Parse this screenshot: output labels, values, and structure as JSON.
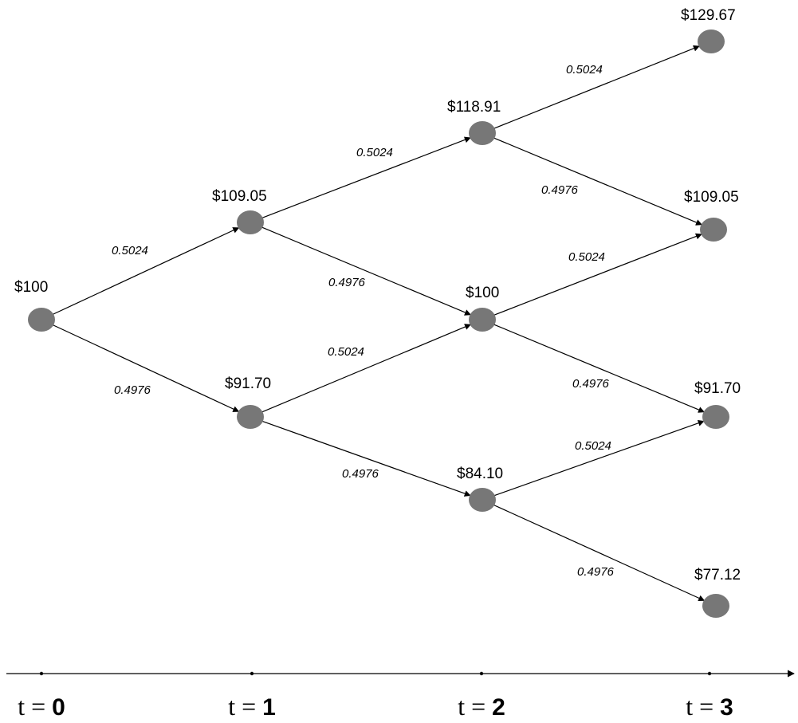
{
  "nodes": [
    {
      "id": "n00",
      "price": "$100"
    },
    {
      "id": "n10",
      "price": "$109.05"
    },
    {
      "id": "n11",
      "price": "$91.70"
    },
    {
      "id": "n20",
      "price": "$118.91"
    },
    {
      "id": "n21",
      "price": "$100"
    },
    {
      "id": "n22",
      "price": "$84.10"
    },
    {
      "id": "n30",
      "price": "$129.67"
    },
    {
      "id": "n31",
      "price": "$109.05"
    },
    {
      "id": "n32",
      "price": "$91.70"
    },
    {
      "id": "n33",
      "price": "$77.12"
    }
  ],
  "edges": [
    {
      "from": "n00",
      "to": "n10",
      "prob": "0.5024"
    },
    {
      "from": "n00",
      "to": "n11",
      "prob": "0.4976"
    },
    {
      "from": "n10",
      "to": "n20",
      "prob": "0.5024"
    },
    {
      "from": "n10",
      "to": "n21",
      "prob": "0.4976"
    },
    {
      "from": "n11",
      "to": "n21",
      "prob": "0.5024"
    },
    {
      "from": "n11",
      "to": "n22",
      "prob": "0.4976"
    },
    {
      "from": "n20",
      "to": "n30",
      "prob": "0.5024"
    },
    {
      "from": "n20",
      "to": "n31",
      "prob": "0.4976"
    },
    {
      "from": "n21",
      "to": "n31",
      "prob": "0.5024"
    },
    {
      "from": "n21",
      "to": "n32",
      "prob": "0.4976"
    },
    {
      "from": "n22",
      "to": "n32",
      "prob": "0.5024"
    },
    {
      "from": "n22",
      "to": "n33",
      "prob": "0.4976"
    }
  ],
  "time_axis": [
    {
      "var": "t",
      "eq": "=",
      "num": "0"
    },
    {
      "var": "t",
      "eq": "=",
      "num": "1"
    },
    {
      "var": "t",
      "eq": "=",
      "num": "2"
    },
    {
      "var": "t",
      "eq": "=",
      "num": "3"
    }
  ],
  "colors": {
    "node": "#777777",
    "line": "#000000",
    "background": "#ffffff"
  }
}
